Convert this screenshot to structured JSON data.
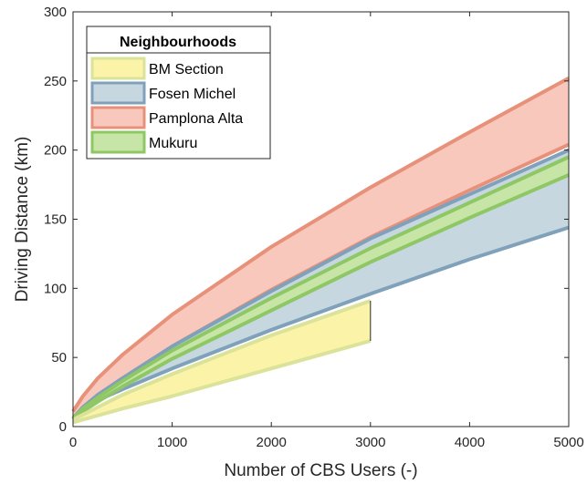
{
  "chart_data": {
    "type": "area",
    "xlabel": "Number of CBS Users (-)",
    "ylabel": "Driving Distance (km)",
    "xlim": [
      0,
      5000
    ],
    "ylim": [
      0,
      300
    ],
    "xticks": [
      0,
      1000,
      2000,
      3000,
      4000,
      5000
    ],
    "yticks": [
      0,
      50,
      100,
      150,
      200,
      250,
      300
    ],
    "grid": false,
    "legend": {
      "title": "Neighbourhoods",
      "placement": "top-left"
    },
    "series": [
      {
        "name": "Pamplona Alta",
        "fill": "#f8c8bd",
        "edge": "#e8917a",
        "x": [
          0,
          100,
          250,
          500,
          1000,
          2000,
          3000,
          4000,
          5000
        ],
        "upper": [
          11,
          22,
          35,
          52,
          81,
          130,
          173,
          213,
          252
        ],
        "lower": [
          6,
          14,
          23,
          35,
          58,
          99,
          137,
          171,
          204
        ]
      },
      {
        "name": "Fosen Michel",
        "fill": "#c6d7e0",
        "edge": "#7fa1ba",
        "x": [
          0,
          100,
          250,
          500,
          1000,
          2000,
          3000,
          4000,
          5000
        ],
        "upper": [
          6,
          14,
          23,
          35,
          58,
          98,
          136,
          168,
          200
        ],
        "lower": [
          5,
          12,
          19,
          27,
          42,
          70,
          96,
          121,
          144
        ]
      },
      {
        "name": "Mukuru",
        "fill": "#c7e5a7",
        "edge": "#8fc765",
        "x": [
          0,
          100,
          250,
          500,
          1000,
          2000,
          3000,
          4000,
          5000
        ],
        "upper": [
          6,
          13,
          21,
          33,
          55,
          93,
          129,
          162,
          195
        ],
        "lower": [
          5,
          11,
          18,
          29,
          49,
          84,
          119,
          151,
          182
        ]
      },
      {
        "name": "BM Section",
        "fill": "#faf3a8",
        "edge": "#dbe39a",
        "x": [
          0,
          250,
          500,
          1000,
          2000,
          3000
        ],
        "upper": [
          5,
          14,
          23,
          38,
          66,
          91
        ],
        "lower": [
          3,
          8,
          13,
          22,
          42,
          62
        ]
      }
    ],
    "legend_order": [
      "BM Section",
      "Fosen Michel",
      "Pamplona Alta",
      "Mukuru"
    ]
  }
}
